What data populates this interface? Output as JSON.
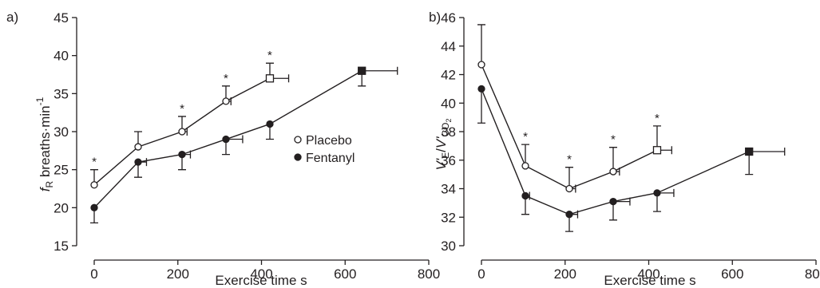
{
  "chart_data": [
    {
      "panel": "a)",
      "type": "line",
      "xlabel": "Exercise time s",
      "ylabel": "fR breaths·min-1",
      "ylabel_parts": {
        "main": "f",
        "sub": "R",
        "rest": " breaths·min",
        "sup": "-1"
      },
      "xlim": [
        0,
        800
      ],
      "ylim": [
        15,
        45
      ],
      "xticks": [
        0,
        200,
        400,
        600,
        800
      ],
      "yticks": [
        15,
        20,
        25,
        30,
        35,
        40,
        45
      ],
      "legend": {
        "position": "right",
        "entries": [
          "Placebo",
          "Fentanyl"
        ]
      },
      "series": [
        {
          "name": "Placebo",
          "marker": "open-circle",
          "end_marker": "open-square",
          "points": [
            {
              "x": 0,
              "y": 23,
              "yerr": 2,
              "xerr": 0
            },
            {
              "x": 105,
              "y": 28,
              "yerr": 2,
              "xerr": 0
            },
            {
              "x": 210,
              "y": 30,
              "yerr": 2,
              "xerr": 12
            },
            {
              "x": 315,
              "y": 34,
              "yerr": 2,
              "xerr": 12
            },
            {
              "x": 420,
              "y": 37,
              "yerr": 2,
              "xerr": 45
            }
          ],
          "significant": [
            0,
            2,
            3,
            4
          ]
        },
        {
          "name": "Fentanyl",
          "marker": "filled-circle",
          "end_marker": "filled-square",
          "points": [
            {
              "x": 0,
              "y": 20,
              "yerr": 2,
              "xerr": 0
            },
            {
              "x": 105,
              "y": 26,
              "yerr": 2,
              "xerr": 20
            },
            {
              "x": 210,
              "y": 27,
              "yerr": 2,
              "xerr": 20
            },
            {
              "x": 315,
              "y": 29,
              "yerr": 2,
              "xerr": 40
            },
            {
              "x": 420,
              "y": 31,
              "yerr": 2,
              "xerr": 0
            },
            {
              "x": 640,
              "y": 38,
              "yerr": 2,
              "xerr": 85
            }
          ]
        }
      ],
      "annotations": [
        "*",
        "*",
        "*",
        "*"
      ]
    },
    {
      "panel": "b)",
      "type": "line",
      "xlabel": "Exercise time s",
      "ylabel": "V'E/V'CO2",
      "ylabel_parts": {
        "v1": "V'",
        "sub1": "E",
        "slash": "/",
        "v2": "V'",
        "sub2": "CO",
        "sub2b": "2"
      },
      "xlim": [
        0,
        800
      ],
      "ylim": [
        30,
        46
      ],
      "xticks": [
        0,
        200,
        400,
        600,
        800
      ],
      "yticks": [
        30,
        32,
        34,
        36,
        38,
        40,
        42,
        44,
        46
      ],
      "series": [
        {
          "name": "Placebo",
          "marker": "open-circle",
          "end_marker": "open-square",
          "points": [
            {
              "x": 0,
              "y": 42.7,
              "yerr": 2.8,
              "xerr": 0
            },
            {
              "x": 105,
              "y": 35.6,
              "yerr": 1.5,
              "xerr": 0
            },
            {
              "x": 210,
              "y": 34.0,
              "yerr": 1.5,
              "xerr": 15
            },
            {
              "x": 315,
              "y": 35.2,
              "yerr": 1.7,
              "xerr": 15
            },
            {
              "x": 420,
              "y": 36.7,
              "yerr": 1.7,
              "xerr": 35
            }
          ],
          "significant": [
            1,
            2,
            3,
            4
          ]
        },
        {
          "name": "Fentanyl",
          "marker": "filled-circle",
          "end_marker": "filled-square",
          "points": [
            {
              "x": 0,
              "y": 41.0,
              "yerr": 2.4,
              "xerr": 0
            },
            {
              "x": 105,
              "y": 33.5,
              "yerr": 1.3,
              "xerr": 10
            },
            {
              "x": 210,
              "y": 32.2,
              "yerr": 1.2,
              "xerr": 20
            },
            {
              "x": 315,
              "y": 33.1,
              "yerr": 1.3,
              "xerr": 40
            },
            {
              "x": 420,
              "y": 33.7,
              "yerr": 1.3,
              "xerr": 40
            },
            {
              "x": 640,
              "y": 36.6,
              "yerr": 1.6,
              "xerr": 85
            }
          ]
        }
      ],
      "annotations": [
        "*",
        "*",
        "*",
        "*"
      ]
    }
  ]
}
